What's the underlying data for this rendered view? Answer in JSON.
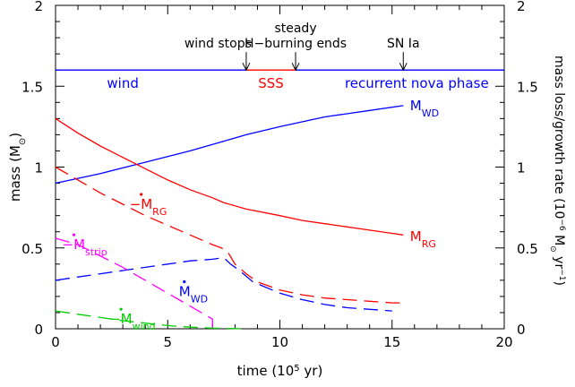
{
  "chart_data": {
    "type": "line",
    "xlabel": "time (10",
    "xlabel_exp": "5",
    "xlabel_tail": " yr)",
    "ylabel_left": "mass (M",
    "ylabel_left_tail": ")",
    "ylabel_right_main": "mass loss/growth rate (10",
    "ylabel_right_exp": "−6",
    "ylabel_right_unit": " M",
    "ylabel_right_unit2": " yr",
    "ylabel_right_exp2": "−1",
    "ylabel_right_close": ")",
    "xlim": [
      0,
      20
    ],
    "ylim": [
      0,
      2
    ],
    "x_ticks": [
      "0",
      "5",
      "10",
      "15",
      "20"
    ],
    "y_ticks_left": [
      "0",
      "0.5",
      "1",
      "1.5",
      "2"
    ],
    "y_ticks_right": [
      "0",
      "0.5",
      "1",
      "1.5",
      "2"
    ],
    "phase_bar": {
      "y": 1.6,
      "segments": [
        {
          "name": "wind",
          "x0": 0,
          "x1": 8.5,
          "color": "#0000ff"
        },
        {
          "name": "SSS",
          "x0": 8.5,
          "x1": 10.7,
          "color": "#ff0000"
        },
        {
          "name": "recurrent nova phase",
          "x0": 10.7,
          "x1": 20,
          "color": "#0000ff"
        }
      ],
      "labels": [
        {
          "text": "wind",
          "x": 3.0,
          "color": "#0000ff"
        },
        {
          "text": "SSS",
          "x": 9.6,
          "color": "#ff0000"
        },
        {
          "text": "recurrent  nova  phase",
          "x": 16.1,
          "color": "#0000ff"
        }
      ]
    },
    "events": [
      {
        "label": "wind stops",
        "x": 8.5
      },
      {
        "label": "steady",
        "label2": "H−burning ends",
        "x": 10.7
      },
      {
        "label": "SN Ia",
        "x": 15.5
      }
    ],
    "series": [
      {
        "name": "M",
        "sub": "WD",
        "color": "#0000ff",
        "dash": "solid",
        "x": [
          0,
          2,
          4,
          6,
          7.5,
          8.5,
          10,
          12,
          14,
          15.5
        ],
        "y": [
          0.9,
          0.96,
          1.03,
          1.1,
          1.16,
          1.2,
          1.25,
          1.31,
          1.35,
          1.38
        ]
      },
      {
        "name": "M",
        "sub": "RG",
        "color": "#ff0000",
        "dash": "solid",
        "x": [
          0,
          1,
          2,
          3,
          4,
          5,
          6,
          7,
          7.5,
          8.5,
          10,
          11,
          12,
          13,
          14,
          15,
          15.5
        ],
        "y": [
          1.3,
          1.21,
          1.13,
          1.06,
          0.99,
          0.92,
          0.86,
          0.81,
          0.78,
          0.74,
          0.7,
          0.67,
          0.65,
          0.63,
          0.61,
          0.59,
          0.58
        ]
      },
      {
        "name": "−M",
        "sub": "RG",
        "dot": true,
        "color": "#ff0000",
        "dash": "long",
        "x": [
          0,
          1,
          2,
          3,
          4,
          5,
          6,
          7,
          7.4,
          7.7,
          8.0,
          8.5,
          9,
          10,
          11,
          12,
          13,
          14,
          15,
          15.5
        ],
        "y": [
          1.0,
          0.92,
          0.84,
          0.77,
          0.7,
          0.64,
          0.58,
          0.52,
          0.5,
          0.47,
          0.4,
          0.34,
          0.29,
          0.24,
          0.21,
          0.19,
          0.18,
          0.17,
          0.16,
          0.16
        ]
      },
      {
        "name": "M",
        "sub": "WD",
        "dot": true,
        "color": "#0000ff",
        "dash": "long",
        "x": [
          0,
          1,
          2,
          3,
          4,
          5,
          6,
          7,
          7.5,
          7.8,
          8.2,
          8.8,
          10,
          11,
          12,
          13,
          14,
          15
        ],
        "y": [
          0.3,
          0.32,
          0.34,
          0.36,
          0.38,
          0.4,
          0.42,
          0.43,
          0.44,
          0.4,
          0.36,
          0.29,
          0.22,
          0.18,
          0.15,
          0.13,
          0.12,
          0.11
        ]
      },
      {
        "name": "−M",
        "sub": "strip",
        "dot": true,
        "color": "#ff00ff",
        "dash": "long",
        "x": [
          0,
          1,
          2,
          3,
          4,
          5,
          6,
          7,
          7.0
        ],
        "y": [
          0.56,
          0.52,
          0.45,
          0.38,
          0.3,
          0.22,
          0.14,
          0.06,
          0.0
        ]
      },
      {
        "name": "−M",
        "sub": "wind",
        "dot": true,
        "color": "#00cc00",
        "dash": "long",
        "x": [
          0,
          1,
          2,
          3,
          4,
          5,
          6,
          7,
          8.5
        ],
        "y": [
          0.11,
          0.09,
          0.07,
          0.05,
          0.035,
          0.02,
          0.01,
          0.004,
          0.0
        ]
      }
    ],
    "series_labels": [
      {
        "series": 0,
        "x": 15.8,
        "y": 1.38
      },
      {
        "series": 1,
        "x": 15.8,
        "y": 0.57
      },
      {
        "series": 2,
        "x": 3.3,
        "y": 0.77
      },
      {
        "series": 3,
        "x": 5.5,
        "y": 0.23
      },
      {
        "series": 4,
        "x": 0.3,
        "y": 0.52
      },
      {
        "series": 5,
        "x": 2.4,
        "y": 0.06
      }
    ]
  }
}
